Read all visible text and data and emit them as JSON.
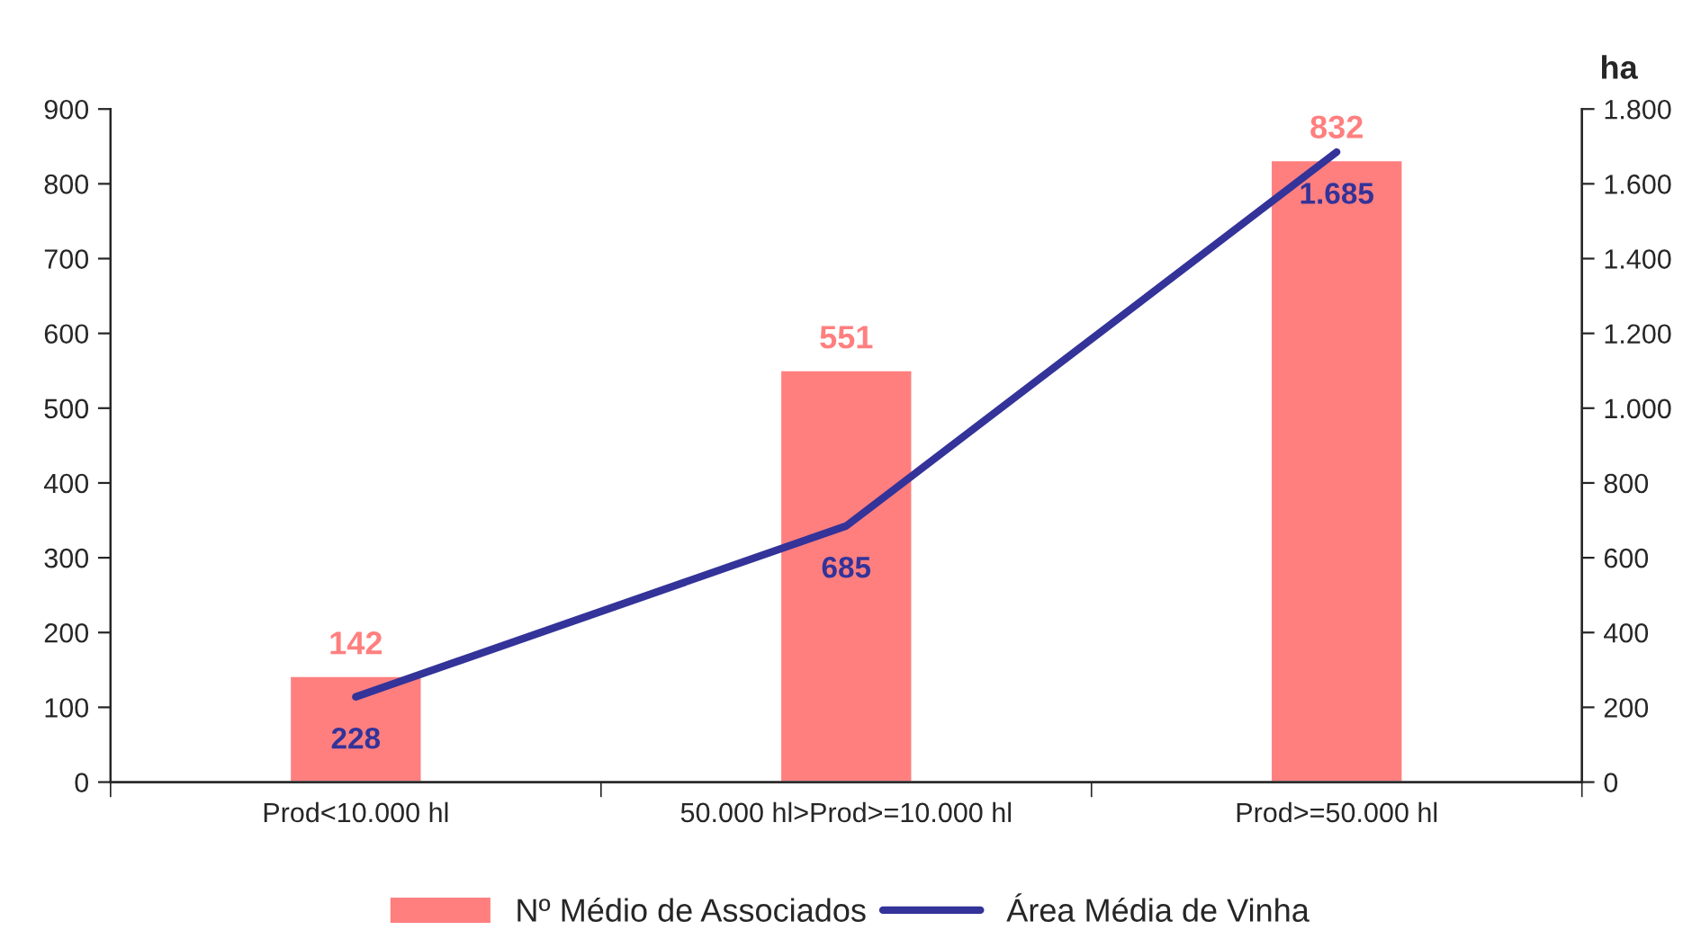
{
  "chart_data": {
    "type": "bar",
    "categories": [
      "Prod<10.000 hl",
      "50.000 hl>Prod>=10.000 hl",
      "Prod>=50.000 hl"
    ],
    "series": [
      {
        "name": "Nº Médio de Associados",
        "color": "#ff7f7f",
        "values": [
          142,
          551,
          832
        ],
        "value_labels": [
          "142",
          "551",
          "832"
        ]
      },
      {
        "name": "Área Média de Vinha",
        "type": "line",
        "axis": "y2",
        "color": "#333399",
        "values": [
          228,
          685,
          1685
        ],
        "value_labels": [
          "228",
          "685",
          "1.685"
        ]
      }
    ],
    "ylim": [
      0,
      900
    ],
    "yticks": [
      0,
      100,
      200,
      300,
      400,
      500,
      600,
      700,
      800,
      900
    ],
    "y2label": "ha",
    "y2lim": [
      0,
      1800
    ],
    "y2ticks": [
      0,
      200,
      400,
      600,
      800,
      {
        "value": 1000,
        "label": "1.000"
      },
      {
        "value": 1200,
        "label": "1.200"
      },
      {
        "value": 1400,
        "label": "1.400"
      },
      {
        "value": 1600,
        "label": "1.600"
      },
      {
        "value": 1800,
        "label": "1.800"
      }
    ],
    "grid": false,
    "legend": "bottom",
    "marker": "none",
    "line_style": "solid"
  }
}
